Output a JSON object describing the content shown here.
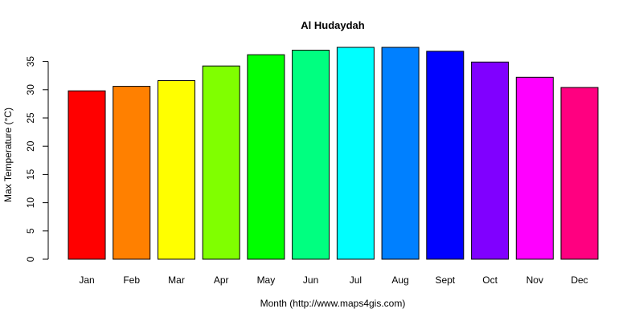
{
  "chart_data": {
    "type": "bar",
    "title": "Al Hudaydah",
    "xlabel": "Month (http://www.maps4gis.com)",
    "ylabel": "Max Temperature (°C)",
    "categories": [
      "Jan",
      "Feb",
      "Mar",
      "Apr",
      "May",
      "Jun",
      "Jul",
      "Aug",
      "Sept",
      "Oct",
      "Nov",
      "Dec"
    ],
    "values": [
      29.8,
      30.6,
      31.6,
      34.2,
      36.2,
      37.0,
      37.5,
      37.5,
      36.8,
      34.9,
      32.2,
      30.4
    ],
    "colors": [
      "#FF0000",
      "#FF8000",
      "#FFFF00",
      "#80FF00",
      "#00FF00",
      "#00FF80",
      "#00FFFF",
      "#0080FF",
      "#0000FF",
      "#8000FF",
      "#FF00FF",
      "#FF0080"
    ],
    "yticks": [
      0,
      5,
      10,
      15,
      20,
      25,
      30,
      35
    ],
    "ylim": [
      0,
      37.5
    ],
    "grid": false,
    "legend": "none"
  }
}
